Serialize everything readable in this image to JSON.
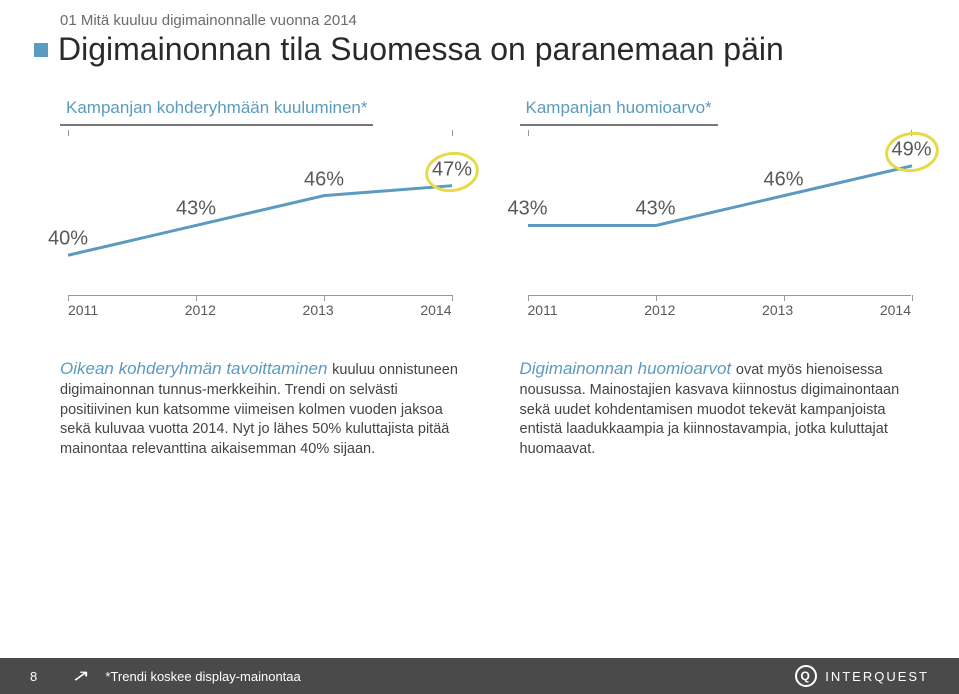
{
  "section_label": "01 Mitä kuuluu digimainonnalle vuonna 2014",
  "title": "Digimainonnan tila Suomessa on paranemaan päin",
  "accent_color": "#5a9bbf",
  "highlight_color": "#e6d94a",
  "text_color": "#595959",
  "chart1": {
    "label": "Kampanjan kohderyhmään kuuluminen*",
    "type": "line",
    "categories": [
      "2011",
      "2012",
      "2013",
      "2014"
    ],
    "values": [
      40,
      43,
      46,
      47
    ],
    "display_labels": [
      "40%",
      "43%",
      "46%",
      "47%"
    ],
    "ylim": [
      36,
      52
    ],
    "line_color": "#5a9bbf",
    "line_width": 3,
    "highlight_index": 3
  },
  "chart2": {
    "label": "Kampanjan huomioarvo*",
    "type": "line",
    "categories": [
      "2011",
      "2012",
      "2013",
      "2014"
    ],
    "values": [
      43,
      43,
      46,
      49
    ],
    "display_labels": [
      "43%",
      "43%",
      "46%",
      "49%"
    ],
    "ylim": [
      36,
      52
    ],
    "line_color": "#5a9bbf",
    "line_width": 3,
    "highlight_index": 3
  },
  "body_left": {
    "lead": "Oikean kohderyhmän tavoittaminen ",
    "rest": "kuuluu onnistuneen digimainonnan tunnus-merkkeihin. Trendi on selvästi positiivinen kun katsomme viimeisen kolmen vuoden jaksoa sekä kuluvaa vuotta 2014. Nyt jo lähes 50% kuluttajista pitää mainontaa relevanttina aikaisemman 40% sijaan."
  },
  "body_right": {
    "lead": "Digimainonnan huomioarvot ",
    "rest": "ovat myös hienoisessa nousussa. Mainostajien kasvava kiinnostus digimainontaan sekä uudet kohdentamisen muodot tekevät kampanjoista entistä laadukkaampia ja kiinnostavampia, jotka kuluttajat huomaavat."
  },
  "footer": {
    "page_number": "8",
    "note": "*Trendi koskee display-mainontaa",
    "brand": "INTERQUEST",
    "brand_glyph": "Q",
    "bg_color": "#4a4a4a"
  }
}
